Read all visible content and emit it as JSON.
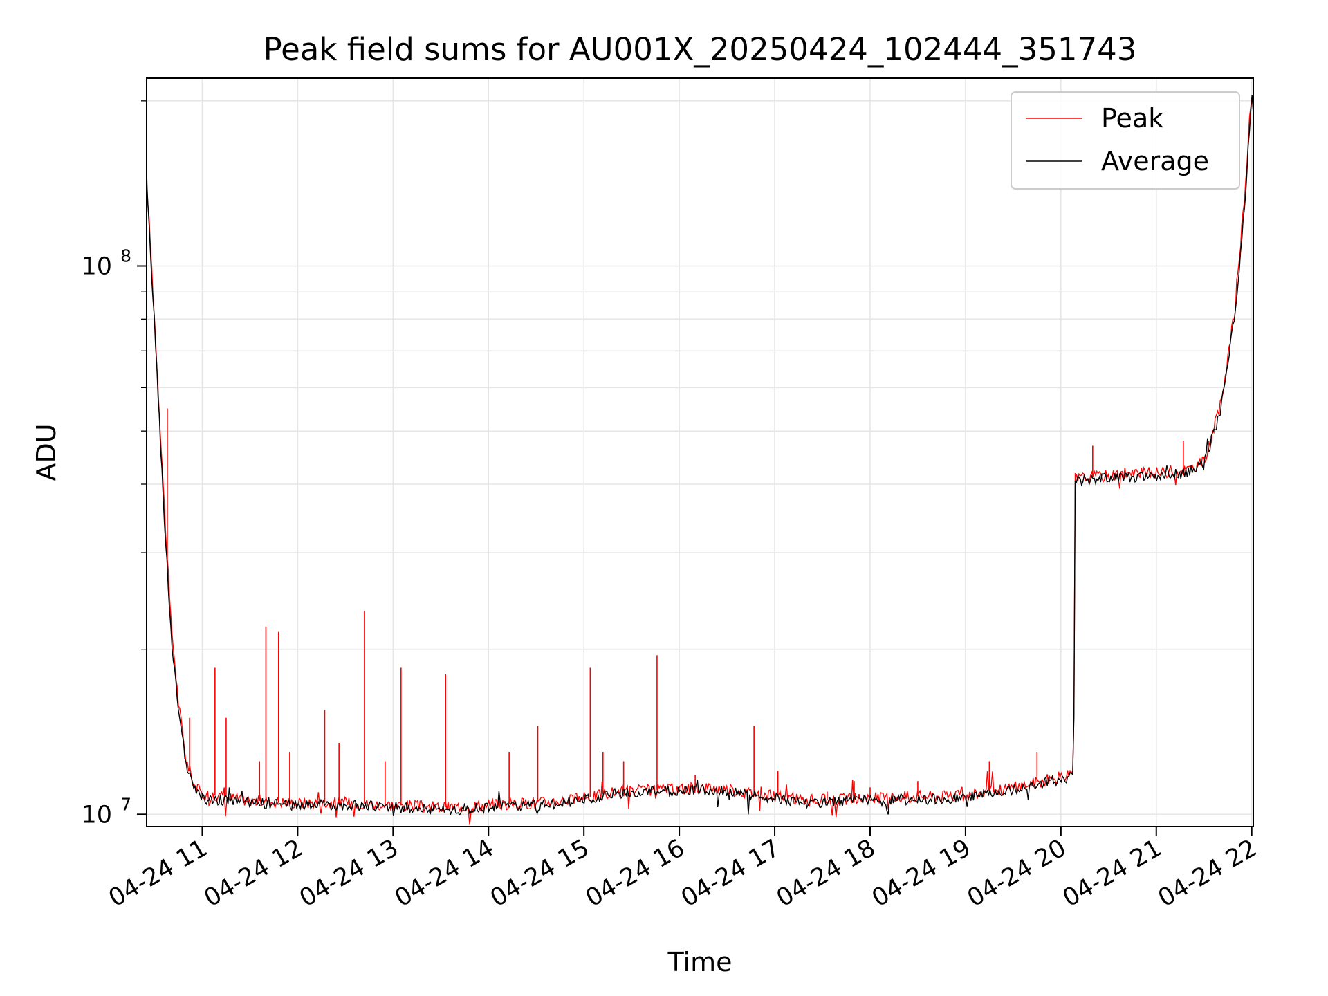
{
  "chart_data": {
    "type": "line",
    "title": "Peak field sums for AU001X_20250424_102444_351743",
    "xlabel": "Time",
    "ylabel": "ADU",
    "x_axis": {
      "type": "datetime",
      "start": "2025-04-24 10:25",
      "end": "2025-04-24 22:01",
      "ticks": [
        "2025-04-24 11:00",
        "2025-04-24 12:00",
        "2025-04-24 13:00",
        "2025-04-24 14:00",
        "2025-04-24 15:00",
        "2025-04-24 16:00",
        "2025-04-24 17:00",
        "2025-04-24 18:00",
        "2025-04-24 19:00",
        "2025-04-24 20:00",
        "2025-04-24 21:00",
        "2025-04-24 22:00"
      ],
      "tick_labels": [
        "04-24 11",
        "04-24 12",
        "04-24 13",
        "04-24 14",
        "04-24 15",
        "04-24 16",
        "04-24 17",
        "04-24 18",
        "04-24 19",
        "04-24 20",
        "04-24 21",
        "04-24 22"
      ]
    },
    "y_axis": {
      "scale": "log",
      "ylim": [
        9500000,
        220000000
      ],
      "major_ticks": [
        10000000,
        100000000
      ],
      "major_tick_labels": [
        {
          "base": "10",
          "exp": "7"
        },
        {
          "base": "10",
          "exp": "8"
        }
      ]
    },
    "grid": true,
    "legend": {
      "position": "top-right",
      "entries": [
        "Peak",
        "Average"
      ]
    },
    "series": [
      {
        "name": "Peak",
        "color": "#ff0000",
        "baseline": [
          [
            "2025-04-24 10:25",
            145000000
          ],
          [
            "2025-04-24 10:30",
            80000000
          ],
          [
            "2025-04-24 10:35",
            42000000
          ],
          [
            "2025-04-24 10:40",
            23000000
          ],
          [
            "2025-04-24 10:45",
            16000000
          ],
          [
            "2025-04-24 10:50",
            12500000
          ],
          [
            "2025-04-24 10:55",
            11300000
          ],
          [
            "2025-04-24 11:00",
            10900000
          ],
          [
            "2025-04-24 11:30",
            10600000
          ],
          [
            "2025-04-24 12:00",
            10500000
          ],
          [
            "2025-04-24 12:30",
            10500000
          ],
          [
            "2025-04-24 13:00",
            10400000
          ],
          [
            "2025-04-24 13:30",
            10300000
          ],
          [
            "2025-04-24 14:00",
            10400000
          ],
          [
            "2025-04-24 14:30",
            10500000
          ],
          [
            "2025-04-24 15:00",
            10700000
          ],
          [
            "2025-04-24 15:20",
            11000000
          ],
          [
            "2025-04-24 15:50",
            11100000
          ],
          [
            "2025-04-24 16:20",
            11200000
          ],
          [
            "2025-04-24 16:50",
            10900000
          ],
          [
            "2025-04-24 17:20",
            10600000
          ],
          [
            "2025-04-24 18:00",
            10700000
          ],
          [
            "2025-04-24 18:30",
            10800000
          ],
          [
            "2025-04-24 19:00",
            10800000
          ],
          [
            "2025-04-24 19:30",
            11200000
          ],
          [
            "2025-04-24 20:00",
            11700000
          ],
          [
            "2025-04-24 20:08",
            11800000
          ],
          [
            "2025-04-24 20:09",
            41000000
          ],
          [
            "2025-04-24 20:30",
            41500000
          ],
          [
            "2025-04-24 21:00",
            42000000
          ],
          [
            "2025-04-24 21:20",
            42500000
          ],
          [
            "2025-04-24 21:30",
            44000000
          ],
          [
            "2025-04-24 21:40",
            55000000
          ],
          [
            "2025-04-24 21:50",
            85000000
          ],
          [
            "2025-04-24 21:56",
            140000000
          ],
          [
            "2025-04-24 22:00",
            210000000
          ],
          [
            "2025-04-24 22:01",
            195000000
          ]
        ],
        "spikes": [
          [
            "2025-04-24 10:38",
            55000000
          ],
          [
            "2025-04-24 10:52",
            15000000
          ],
          [
            "2025-04-24 11:08",
            18500000
          ],
          [
            "2025-04-24 11:15",
            15000000
          ],
          [
            "2025-04-24 11:36",
            12500000
          ],
          [
            "2025-04-24 11:40",
            22000000
          ],
          [
            "2025-04-24 11:48",
            21500000
          ],
          [
            "2025-04-24 11:55",
            13000000
          ],
          [
            "2025-04-24 12:17",
            15500000
          ],
          [
            "2025-04-24 12:26",
            13500000
          ],
          [
            "2025-04-24 12:42",
            23500000
          ],
          [
            "2025-04-24 12:55",
            12500000
          ],
          [
            "2025-04-24 13:05",
            18500000
          ],
          [
            "2025-04-24 13:33",
            18000000
          ],
          [
            "2025-04-24 14:13",
            13000000
          ],
          [
            "2025-04-24 14:31",
            14500000
          ],
          [
            "2025-04-24 15:04",
            18500000
          ],
          [
            "2025-04-24 15:12",
            13000000
          ],
          [
            "2025-04-24 15:25",
            12500000
          ],
          [
            "2025-04-24 15:46",
            19500000
          ],
          [
            "2025-04-24 16:10",
            11800000
          ],
          [
            "2025-04-24 16:47",
            14500000
          ],
          [
            "2025-04-24 17:02",
            12000000
          ],
          [
            "2025-04-24 17:33",
            11000000
          ],
          [
            "2025-04-24 17:50",
            11500000
          ],
          [
            "2025-04-24 18:00",
            11200000
          ],
          [
            "2025-04-24 18:30",
            11500000
          ],
          [
            "2025-04-24 19:15",
            12500000
          ],
          [
            "2025-04-24 19:45",
            13000000
          ],
          [
            "2025-04-24 20:20",
            47000000
          ],
          [
            "2025-04-24 21:17",
            48000000
          ],
          [
            "2025-04-24 21:35",
            49000000
          ]
        ]
      },
      {
        "name": "Average",
        "color": "#000000",
        "baseline": [
          [
            "2025-04-24 10:25",
            140000000
          ],
          [
            "2025-04-24 10:30",
            78000000
          ],
          [
            "2025-04-24 10:35",
            40000000
          ],
          [
            "2025-04-24 10:40",
            22000000
          ],
          [
            "2025-04-24 10:45",
            15500000
          ],
          [
            "2025-04-24 10:50",
            12200000
          ],
          [
            "2025-04-24 10:55",
            11100000
          ],
          [
            "2025-04-24 11:00",
            10700000
          ],
          [
            "2025-04-24 11:30",
            10500000
          ],
          [
            "2025-04-24 12:00",
            10400000
          ],
          [
            "2025-04-24 12:30",
            10400000
          ],
          [
            "2025-04-24 13:00",
            10300000
          ],
          [
            "2025-04-24 13:30",
            10200000
          ],
          [
            "2025-04-24 14:00",
            10300000
          ],
          [
            "2025-04-24 14:30",
            10400000
          ],
          [
            "2025-04-24 15:00",
            10600000
          ],
          [
            "2025-04-24 15:20",
            10900000
          ],
          [
            "2025-04-24 15:50",
            11000000
          ],
          [
            "2025-04-24 16:20",
            11100000
          ],
          [
            "2025-04-24 16:50",
            10800000
          ],
          [
            "2025-04-24 17:20",
            10500000
          ],
          [
            "2025-04-24 18:00",
            10600000
          ],
          [
            "2025-04-24 18:30",
            10650000
          ],
          [
            "2025-04-24 19:00",
            10700000
          ],
          [
            "2025-04-24 19:30",
            11100000
          ],
          [
            "2025-04-24 20:00",
            11600000
          ],
          [
            "2025-04-24 20:08",
            11700000
          ],
          [
            "2025-04-24 20:09",
            40500000
          ],
          [
            "2025-04-24 20:30",
            41000000
          ],
          [
            "2025-04-24 21:00",
            41500000
          ],
          [
            "2025-04-24 21:20",
            42000000
          ],
          [
            "2025-04-24 21:30",
            43500000
          ],
          [
            "2025-04-24 21:40",
            54000000
          ],
          [
            "2025-04-24 21:50",
            83000000
          ],
          [
            "2025-04-24 21:56",
            135000000
          ],
          [
            "2025-04-24 22:00",
            205000000
          ],
          [
            "2025-04-24 22:01",
            190000000
          ]
        ]
      }
    ]
  }
}
